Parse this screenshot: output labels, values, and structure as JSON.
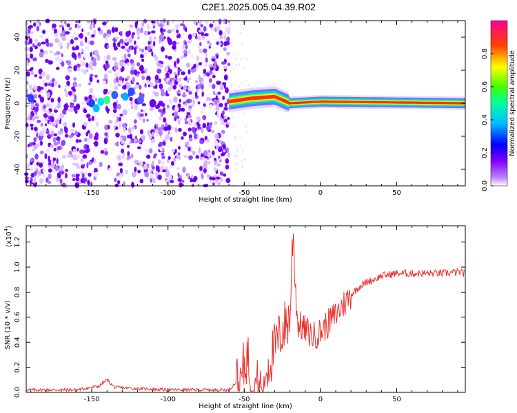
{
  "title": "C2E1.2025.005.04.39.R02",
  "chart_data": [
    {
      "type": "heatmap",
      "title": "C2E1.2025.005.04.39.R02",
      "xlabel": "Height of straight line (km)",
      "ylabel": "Frequency (Hz)",
      "xlim": [
        -193,
        95
      ],
      "ylim": [
        -50,
        50
      ],
      "xticks": [
        -150,
        -100,
        -50,
        0,
        50
      ],
      "yticks": [
        -40,
        -20,
        0,
        20,
        40
      ],
      "colorbar": {
        "label": "Normalized spectral amplitude",
        "range": [
          0.0,
          1.0
        ],
        "ticks": [
          0.0,
          0.2,
          0.4,
          0.6,
          0.8
        ],
        "colors": [
          "#ffffff",
          "#a000ff",
          "#0000ff",
          "#00ffff",
          "#00ff00",
          "#ffff00",
          "#ff0000",
          "#ff00a0"
        ]
      },
      "features": {
        "noise_region_x": [
          -193,
          -60
        ],
        "signal_line_x": [
          -60,
          95
        ],
        "signal_line_freq": 0,
        "line_start_freq_offset": [
          [
            -60,
            1
          ],
          [
            -45,
            3
          ],
          [
            -30,
            4
          ],
          [
            -20,
            0
          ],
          [
            0,
            1
          ],
          [
            95,
            0
          ]
        ]
      }
    },
    {
      "type": "line",
      "xlabel": "Height of straight line (km)",
      "ylabel": "SNR (10 * v/v)",
      "yscale_label": "(x10",
      "yscale_exp": "4",
      "xlim": [
        -193,
        95
      ],
      "ylim": [
        0,
        1.33
      ],
      "xticks": [
        -150,
        -100,
        -50,
        0,
        50
      ],
      "yticks": [
        0.0,
        0.2,
        0.4,
        0.6,
        0.8,
        1.0,
        1.2
      ],
      "color": "#e8302c",
      "x": [
        -193,
        -180,
        -160,
        -145,
        -140,
        -135,
        -120,
        -100,
        -80,
        -60,
        -52,
        -48,
        -45,
        -42,
        -38,
        -35,
        -30,
        -25,
        -20,
        -18,
        -15,
        -10,
        -5,
        0,
        5,
        10,
        15,
        20,
        25,
        30,
        35,
        40,
        45,
        50,
        60,
        70,
        80,
        90,
        95
      ],
      "y": [
        0.02,
        0.02,
        0.02,
        0.05,
        0.1,
        0.04,
        0.03,
        0.02,
        0.02,
        0.02,
        0.12,
        0.3,
        0.1,
        0.05,
        0.08,
        0.2,
        0.35,
        0.5,
        0.6,
        1.3,
        0.55,
        0.5,
        0.45,
        0.48,
        0.55,
        0.62,
        0.7,
        0.78,
        0.84,
        0.88,
        0.9,
        0.93,
        0.94,
        0.95,
        0.95,
        0.95,
        0.95,
        0.96,
        0.95
      ]
    }
  ]
}
